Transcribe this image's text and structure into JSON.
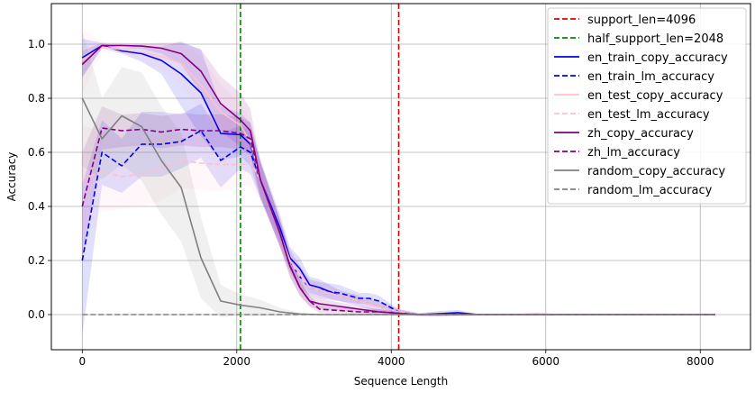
{
  "chart_data": {
    "type": "line",
    "xlabel": "Sequence Length",
    "ylabel": "Accuracy",
    "xlim": [
      -400,
      8650
    ],
    "ylim": [
      -0.13,
      1.15
    ],
    "xticks": [
      0,
      2000,
      4000,
      6000,
      8000
    ],
    "yticks": [
      0.0,
      0.2,
      0.4,
      0.6,
      0.8,
      1.0
    ],
    "xtick_labels": [
      "0",
      "2000",
      "4000",
      "6000",
      "8000"
    ],
    "ytick_labels": [
      "0.0",
      "0.2",
      "0.4",
      "0.6",
      "0.8",
      "1.0"
    ],
    "grid": true,
    "legend_position": "top-right",
    "vlines": [
      {
        "name": "support_len=4096",
        "x": 4096,
        "color": "#dd0000"
      },
      {
        "name": "half_support_len=2048",
        "x": 2048,
        "color": "#008800"
      }
    ],
    "series": [
      {
        "name": "en_train_copy_accuracy",
        "color": "#0000ee",
        "dash": false,
        "x": [
          0,
          256,
          512,
          768,
          1024,
          1280,
          1536,
          1792,
          2048,
          2176,
          2304,
          2560,
          2688,
          2816,
          2944,
          3072,
          3328,
          3584,
          3712,
          3840,
          4096,
          4352,
          4608,
          4864,
          5120,
          5632,
          6144,
          8192
        ],
        "y": [
          0.95,
          0.995,
          0.975,
          0.965,
          0.94,
          0.89,
          0.82,
          0.67,
          0.665,
          0.63,
          0.5,
          0.32,
          0.21,
          0.17,
          0.11,
          0.1,
          0.07,
          0.05,
          0.04,
          0.03,
          0.01,
          0.0,
          0.003,
          0.007,
          0.0,
          0.0,
          0.0,
          0.0
        ],
        "band": [
          0.07,
          0.01,
          0.01,
          0.03,
          0.05,
          0.12,
          0.16,
          0.1,
          0.08,
          0.08,
          0.07,
          0.05,
          0.04,
          0.04,
          0.03,
          0.03,
          0.02,
          0.02,
          0.02,
          0.02,
          0.01,
          0.005,
          0.01,
          0.01,
          0.003,
          0.003,
          0.003,
          0.002
        ]
      },
      {
        "name": "en_train_lm_accuracy",
        "color": "#0000ee",
        "dash": true,
        "x": [
          0,
          256,
          512,
          768,
          1024,
          1280,
          1536,
          1792,
          2048,
          2176,
          2304,
          2560,
          2688,
          2816,
          2944,
          3072,
          3328,
          3584,
          3712,
          3840,
          4096,
          4352,
          4608,
          4864,
          5120,
          5632,
          6144,
          8192
        ],
        "y": [
          0.2,
          0.6,
          0.55,
          0.63,
          0.63,
          0.64,
          0.68,
          0.57,
          0.62,
          0.6,
          0.5,
          0.3,
          0.2,
          0.14,
          0.1,
          0.09,
          0.08,
          0.06,
          0.06,
          0.05,
          0.01,
          0.0,
          0.0,
          0.0,
          0.0,
          0.0,
          0.0,
          0.0
        ],
        "band": [
          0.28,
          0.12,
          0.1,
          0.12,
          0.12,
          0.1,
          0.1,
          0.1,
          0.08,
          0.08,
          0.07,
          0.05,
          0.04,
          0.04,
          0.03,
          0.03,
          0.03,
          0.02,
          0.02,
          0.02,
          0.01,
          0.005,
          0.005,
          0.005,
          0.003,
          0.003,
          0.003,
          0.002
        ]
      },
      {
        "name": "en_test_copy_accuracy",
        "color": "#ffc0cb",
        "dash": false,
        "x": [
          0,
          256,
          512,
          768,
          1024,
          1280,
          1536,
          1792,
          2048,
          2176,
          2304,
          2560,
          2688,
          2816,
          2944,
          3072,
          3328,
          3584,
          3712,
          3840,
          4096,
          4352,
          4608,
          4864,
          5120,
          5632,
          5888,
          6144,
          8192
        ],
        "y": [
          0.94,
          0.99,
          0.98,
          0.97,
          0.955,
          0.93,
          0.85,
          0.75,
          0.7,
          0.64,
          0.5,
          0.3,
          0.2,
          0.15,
          0.1,
          0.09,
          0.07,
          0.05,
          0.04,
          0.03,
          0.01,
          0.0,
          0.0,
          0.0,
          0.0,
          0.0,
          0.003,
          0.0,
          0.0
        ],
        "band": [
          0.12,
          0.02,
          0.02,
          0.03,
          0.05,
          0.08,
          0.1,
          0.1,
          0.08,
          0.08,
          0.07,
          0.05,
          0.04,
          0.04,
          0.03,
          0.03,
          0.02,
          0.02,
          0.02,
          0.02,
          0.01,
          0.005,
          0.005,
          0.005,
          0.005,
          0.005,
          0.01,
          0.003,
          0.002
        ]
      },
      {
        "name": "en_test_lm_accuracy",
        "color": "#ffc0cb",
        "dash": true,
        "x": [
          0,
          256,
          512,
          768,
          1024,
          1280,
          1536,
          1792,
          2048,
          2176,
          2304,
          2560,
          2688,
          2816,
          2944,
          3072,
          3328,
          3584,
          3712,
          3840,
          4096,
          4352,
          4608,
          5120,
          6144,
          8192
        ],
        "y": [
          0.5,
          0.53,
          0.51,
          0.52,
          0.54,
          0.57,
          0.56,
          0.555,
          0.555,
          0.56,
          0.5,
          0.3,
          0.2,
          0.14,
          0.1,
          0.09,
          0.07,
          0.05,
          0.04,
          0.03,
          0.01,
          0.0,
          0.0,
          0.0,
          0.0,
          0.0
        ],
        "band": [
          0.2,
          0.15,
          0.12,
          0.12,
          0.12,
          0.1,
          0.1,
          0.1,
          0.08,
          0.08,
          0.07,
          0.05,
          0.04,
          0.04,
          0.03,
          0.03,
          0.02,
          0.02,
          0.02,
          0.02,
          0.01,
          0.005,
          0.005,
          0.003,
          0.003,
          0.002
        ]
      },
      {
        "name": "zh_copy_accuracy",
        "color": "#800080",
        "dash": false,
        "x": [
          0,
          256,
          512,
          768,
          1024,
          1280,
          1536,
          1792,
          1920,
          2048,
          2176,
          2304,
          2560,
          2688,
          2816,
          2944,
          3072,
          3328,
          3584,
          3840,
          4096,
          4352,
          4608,
          5120,
          6144,
          8192
        ],
        "y": [
          0.925,
          0.995,
          0.995,
          0.993,
          0.985,
          0.965,
          0.9,
          0.78,
          0.75,
          0.72,
          0.68,
          0.5,
          0.3,
          0.18,
          0.1,
          0.05,
          0.04,
          0.03,
          0.02,
          0.01,
          0.005,
          0.0,
          0.0,
          0.0,
          0.0,
          0.0
        ],
        "band": [
          0.05,
          0.01,
          0.01,
          0.01,
          0.02,
          0.04,
          0.08,
          0.1,
          0.1,
          0.1,
          0.08,
          0.07,
          0.05,
          0.04,
          0.03,
          0.02,
          0.02,
          0.015,
          0.01,
          0.01,
          0.005,
          0.003,
          0.003,
          0.002,
          0.002,
          0.002
        ]
      },
      {
        "name": "zh_lm_accuracy",
        "color": "#800080",
        "dash": true,
        "x": [
          0,
          256,
          512,
          768,
          1024,
          1280,
          1536,
          1792,
          2048,
          2176,
          2304,
          2560,
          2688,
          2816,
          2944,
          3072,
          3328,
          3584,
          3840,
          4096,
          4352,
          4608,
          5120,
          6144,
          8192
        ],
        "y": [
          0.4,
          0.69,
          0.68,
          0.685,
          0.675,
          0.685,
          0.68,
          0.68,
          0.67,
          0.65,
          0.5,
          0.3,
          0.18,
          0.1,
          0.05,
          0.02,
          0.015,
          0.01,
          0.01,
          0.005,
          0.0,
          0.0,
          0.0,
          0.0,
          0.0
        ],
        "band": [
          0.2,
          0.08,
          0.06,
          0.06,
          0.06,
          0.06,
          0.06,
          0.06,
          0.06,
          0.06,
          0.06,
          0.05,
          0.04,
          0.03,
          0.02,
          0.015,
          0.01,
          0.01,
          0.01,
          0.005,
          0.003,
          0.003,
          0.002,
          0.002,
          0.002
        ]
      },
      {
        "name": "random_copy_accuracy",
        "color": "#808080",
        "dash": false,
        "x": [
          0,
          256,
          512,
          768,
          1024,
          1280,
          1536,
          1792,
          2048,
          2304,
          2560,
          2816,
          3072,
          3584,
          4096,
          5120,
          6144,
          8192
        ],
        "y": [
          0.8,
          0.65,
          0.735,
          0.695,
          0.57,
          0.47,
          0.21,
          0.05,
          0.035,
          0.025,
          0.01,
          0.002,
          0.0,
          0.0,
          0.0,
          0.0,
          0.0,
          0.0
        ],
        "band": [
          0.25,
          0.15,
          0.18,
          0.2,
          0.2,
          0.2,
          0.15,
          0.06,
          0.04,
          0.03,
          0.015,
          0.005,
          0.002,
          0.002,
          0.002,
          0.002,
          0.002,
          0.002
        ]
      },
      {
        "name": "random_lm_accuracy",
        "color": "#808080",
        "dash": true,
        "x": [
          0,
          8192
        ],
        "y": [
          0.0,
          0.0
        ],
        "band": [
          0.0,
          0.0
        ]
      }
    ]
  }
}
